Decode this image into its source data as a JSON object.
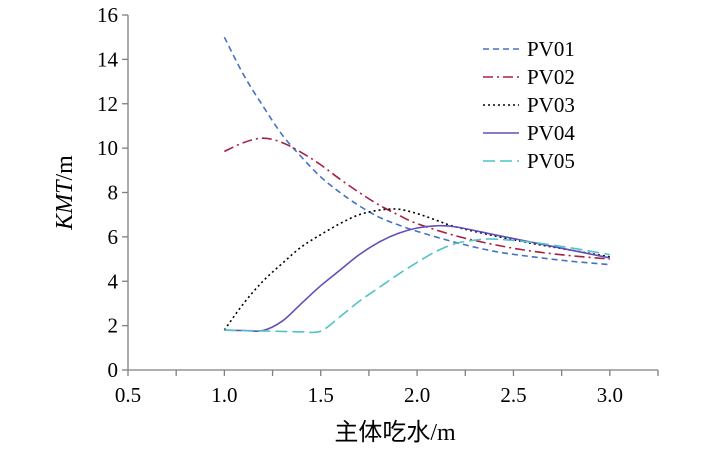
{
  "chart_data": {
    "type": "line",
    "title": "",
    "xlabel": "主体吃水/m",
    "ylabel_parts": {
      "italic": "KMT",
      "unit": "/m"
    },
    "xlim": [
      0.5,
      3.25
    ],
    "ylim": [
      0,
      16
    ],
    "x_ticks": [
      0.5,
      1.0,
      1.5,
      2.0,
      2.5,
      3.0
    ],
    "x_tick_labels": [
      "0.5",
      "1.0",
      "1.5",
      "2.0",
      "2.5",
      "3.0"
    ],
    "y_ticks": [
      0,
      2,
      4,
      6,
      8,
      10,
      12,
      14,
      16
    ],
    "y_tick_labels": [
      "0",
      "2",
      "4",
      "6",
      "8",
      "10",
      "12",
      "14",
      "16"
    ],
    "grid": false,
    "legend_position": "top-right",
    "series": [
      {
        "name": "PV01",
        "color": "#4472c4",
        "dash": "6,4",
        "x": [
          1.0,
          1.1,
          1.2,
          1.3,
          1.4,
          1.5,
          1.6,
          1.7,
          1.8,
          1.9,
          2.0,
          2.2,
          2.4,
          2.6,
          2.8,
          3.0
        ],
        "y": [
          15.0,
          13.3,
          11.9,
          10.6,
          9.6,
          8.7,
          8.0,
          7.4,
          6.9,
          6.55,
          6.25,
          5.75,
          5.35,
          5.1,
          4.9,
          4.75
        ]
      },
      {
        "name": "PV02",
        "color": "#a62040",
        "dash": "10,4,2,4",
        "x": [
          1.0,
          1.1,
          1.2,
          1.3,
          1.4,
          1.5,
          1.6,
          1.7,
          1.8,
          1.9,
          2.0,
          2.2,
          2.4,
          2.6,
          2.8,
          3.0
        ],
        "y": [
          9.85,
          10.25,
          10.45,
          10.25,
          9.8,
          9.25,
          8.6,
          8.0,
          7.45,
          7.0,
          6.6,
          6.05,
          5.65,
          5.35,
          5.15,
          5.0
        ]
      },
      {
        "name": "PV03",
        "color": "#000000",
        "dash": "2,3",
        "x": [
          1.0,
          1.1,
          1.2,
          1.3,
          1.4,
          1.5,
          1.6,
          1.7,
          1.8,
          1.9,
          2.0,
          2.1,
          2.2,
          2.4,
          2.6,
          2.8,
          3.0
        ],
        "y": [
          1.8,
          3.0,
          4.0,
          4.8,
          5.55,
          6.1,
          6.6,
          7.0,
          7.2,
          7.25,
          7.05,
          6.75,
          6.45,
          6.05,
          5.7,
          5.4,
          5.1
        ]
      },
      {
        "name": "PV04",
        "color": "#6050b8",
        "dash": "",
        "x": [
          1.0,
          1.1,
          1.2,
          1.3,
          1.4,
          1.5,
          1.6,
          1.7,
          1.8,
          1.9,
          2.0,
          2.1,
          2.2,
          2.4,
          2.6,
          2.8,
          3.0
        ],
        "y": [
          1.8,
          1.78,
          1.78,
          2.2,
          3.0,
          3.8,
          4.5,
          5.2,
          5.75,
          6.15,
          6.4,
          6.5,
          6.45,
          6.1,
          5.75,
          5.4,
          5.05
        ]
      },
      {
        "name": "PV05",
        "color": "#4fc3c7",
        "dash": "12,5",
        "x": [
          1.0,
          1.1,
          1.2,
          1.3,
          1.4,
          1.5,
          1.6,
          1.7,
          1.8,
          1.9,
          2.0,
          2.1,
          2.2,
          2.3,
          2.4,
          2.6,
          2.8,
          3.0
        ],
        "y": [
          1.8,
          1.78,
          1.76,
          1.74,
          1.72,
          1.75,
          2.4,
          3.1,
          3.7,
          4.3,
          4.85,
          5.35,
          5.7,
          5.85,
          5.9,
          5.75,
          5.5,
          5.2
        ]
      }
    ]
  }
}
